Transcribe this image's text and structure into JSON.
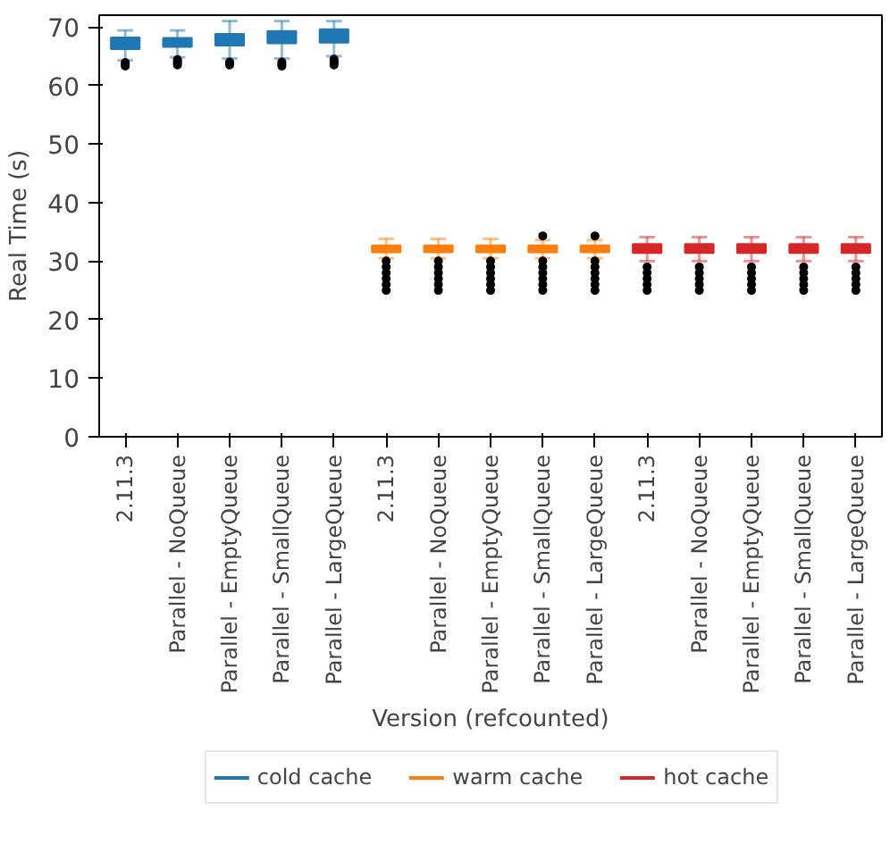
{
  "chart_data": {
    "type": "box",
    "xlabel": "Version (refcounted)",
    "ylabel": "Real Time (s)",
    "categories": [
      "2.11.3",
      "Parallel - NoQueue",
      "Parallel - EmptyQueue",
      "Parallel - SmallQueue",
      "Parallel - LargeQueue",
      "2.11.3",
      "Parallel - NoQueue",
      "Parallel - EmptyQueue",
      "Parallel - SmallQueue",
      "Parallel - LargeQueue",
      "2.11.3",
      "Parallel - NoQueue",
      "Parallel - EmptyQueue",
      "Parallel - SmallQueue",
      "Parallel - LargeQueue"
    ],
    "ylim": [
      0,
      72
    ],
    "yticks": [
      0,
      10,
      20,
      30,
      40,
      50,
      60,
      70
    ],
    "grid": false,
    "legend": "bottom",
    "series": [
      {
        "name": "cold cache",
        "color": "#1f77b4",
        "boxes": [
          {
            "low": 64.3,
            "q1": 66.2,
            "median": 67.2,
            "q3": 68.2,
            "high": 69.4,
            "outliers": [
              63.3,
              63.6,
              63.9
            ]
          },
          {
            "low": 64.8,
            "q1": 66.6,
            "median": 67.3,
            "q3": 68.1,
            "high": 69.4,
            "outliers": [
              63.5,
              63.8,
              64.1,
              64.4
            ]
          },
          {
            "low": 64.6,
            "q1": 66.8,
            "median": 67.8,
            "q3": 68.8,
            "high": 71.0,
            "outliers": [
              63.5,
              63.8,
              64.0
            ]
          },
          {
            "low": 64.6,
            "q1": 67.2,
            "median": 68.2,
            "q3": 69.3,
            "high": 71.0,
            "outliers": [
              63.3,
              63.6,
              64.0
            ]
          },
          {
            "low": 65.0,
            "q1": 67.3,
            "median": 68.4,
            "q3": 69.6,
            "high": 71.0,
            "outliers": [
              63.5,
              63.8,
              64.1,
              64.5
            ]
          },
          null,
          null,
          null,
          null,
          null,
          null,
          null,
          null,
          null,
          null
        ]
      },
      {
        "name": "warm cache",
        "color": "#ff7f0e",
        "boxes": [
          null,
          null,
          null,
          null,
          null,
          {
            "low": 30.5,
            "q1": 31.5,
            "median": 32.1,
            "q3": 32.7,
            "high": 33.8,
            "outliers": [
              25,
              26,
              27,
              28,
              29,
              30
            ]
          },
          {
            "low": 30.5,
            "q1": 31.5,
            "median": 32.1,
            "q3": 32.7,
            "high": 33.8,
            "outliers": [
              25,
              26,
              27,
              28,
              29,
              30
            ]
          },
          {
            "low": 30.5,
            "q1": 31.5,
            "median": 32.1,
            "q3": 32.7,
            "high": 33.8,
            "outliers": [
              25,
              26,
              27,
              28,
              29,
              30
            ]
          },
          {
            "low": 30.5,
            "q1": 31.5,
            "median": 32.1,
            "q3": 32.7,
            "high": 33.6,
            "outliers": [
              25,
              26,
              27,
              28,
              29,
              30,
              34.3
            ]
          },
          {
            "low": 30.5,
            "q1": 31.5,
            "median": 32.1,
            "q3": 32.7,
            "high": 33.6,
            "outliers": [
              25,
              26,
              27,
              28,
              29,
              30,
              34.3
            ]
          },
          null,
          null,
          null,
          null,
          null
        ]
      },
      {
        "name": "hot cache",
        "color": "#d62728",
        "boxes": [
          null,
          null,
          null,
          null,
          null,
          null,
          null,
          null,
          null,
          null,
          {
            "low": 30.0,
            "q1": 31.4,
            "median": 32.1,
            "q3": 32.9,
            "high": 34.1,
            "outliers": [
              25,
              26,
              27,
              28,
              29
            ]
          },
          {
            "low": 30.0,
            "q1": 31.4,
            "median": 32.1,
            "q3": 32.9,
            "high": 34.1,
            "outliers": [
              25,
              26,
              27,
              28,
              29
            ]
          },
          {
            "low": 30.0,
            "q1": 31.4,
            "median": 32.1,
            "q3": 32.9,
            "high": 34.1,
            "outliers": [
              25,
              26,
              27,
              28,
              29
            ]
          },
          {
            "low": 30.0,
            "q1": 31.4,
            "median": 32.1,
            "q3": 32.9,
            "high": 34.1,
            "outliers": [
              25,
              26,
              27,
              28,
              29
            ]
          },
          {
            "low": 30.0,
            "q1": 31.4,
            "median": 32.1,
            "q3": 32.9,
            "high": 34.1,
            "outliers": [
              25,
              26,
              27,
              28,
              29
            ]
          }
        ]
      }
    ]
  }
}
